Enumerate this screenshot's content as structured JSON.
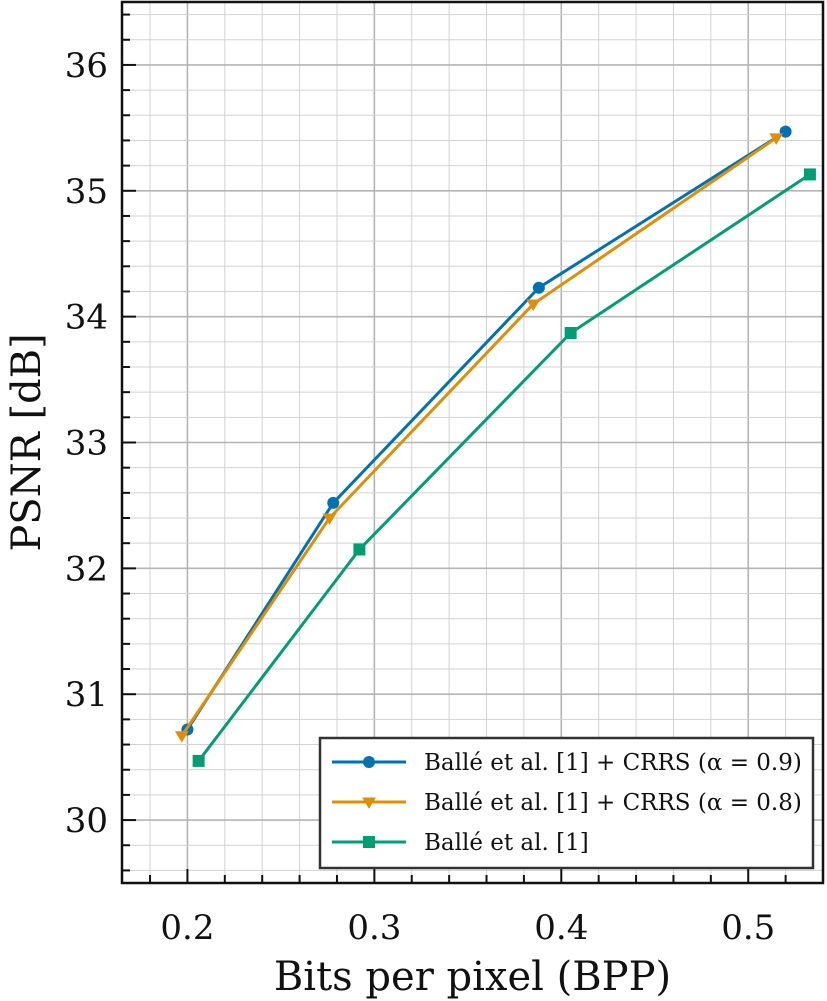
{
  "chart_data": {
    "type": "line",
    "title": "",
    "xlabel": "Bits per pixel (BPP)",
    "ylabel": "PSNR [dB]",
    "xlim": [
      0.165,
      0.54
    ],
    "ylim": [
      29.5,
      36.5
    ],
    "xticks": [
      "0.2",
      "0.3",
      "0.4",
      "0.5"
    ],
    "yticks": [
      "30",
      "31",
      "32",
      "33",
      "34",
      "35",
      "36"
    ],
    "grid": true,
    "legend_position": "bottom-right",
    "series": [
      {
        "name": "Ballé et al. [1] + CRRS (α = 0.9)",
        "color": "#0072b2",
        "marker": "circle",
        "x": [
          0.2,
          0.278,
          0.388,
          0.52
        ],
        "y": [
          30.72,
          32.52,
          34.23,
          35.47
        ]
      },
      {
        "name": "Ballé et al. [1] + CRRS (α = 0.8)",
        "color": "#de8f05",
        "marker": "triangle-down",
        "x": [
          0.197,
          0.276,
          0.385,
          0.515
        ],
        "y": [
          30.67,
          32.4,
          34.1,
          35.42
        ]
      },
      {
        "name": "Ballé et al. [1]",
        "color": "#029e73",
        "marker": "square",
        "x": [
          0.206,
          0.292,
          0.405,
          0.533
        ],
        "y": [
          30.47,
          32.15,
          33.87,
          35.13
        ]
      }
    ]
  }
}
